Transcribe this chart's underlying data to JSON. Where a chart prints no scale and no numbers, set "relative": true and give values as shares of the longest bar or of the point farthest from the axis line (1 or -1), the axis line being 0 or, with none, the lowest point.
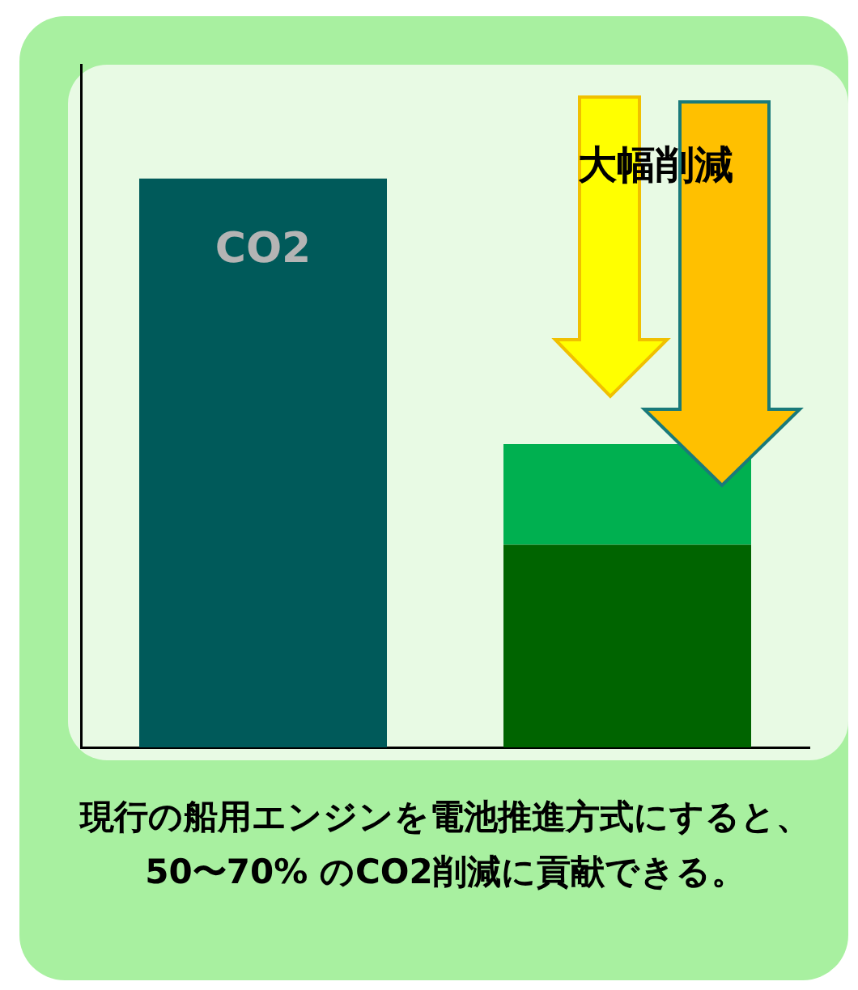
{
  "chart_data": {
    "type": "bar",
    "relative": true,
    "stacked": true,
    "categories": [
      "CO2",
      null
    ],
    "series": [
      {
        "colors": [
          "#005a5a",
          "#006400"
        ],
        "values": [
          1,
          0.356
        ]
      },
      {
        "color": "#00b050",
        "values": [
          null,
          0.177
        ]
      }
    ],
    "annotations": [
      "大幅削減",
      "現行の船用エンジンを電池推進方式にすると、50〜70% のCO2削減に貢献できる。"
    ]
  }
}
